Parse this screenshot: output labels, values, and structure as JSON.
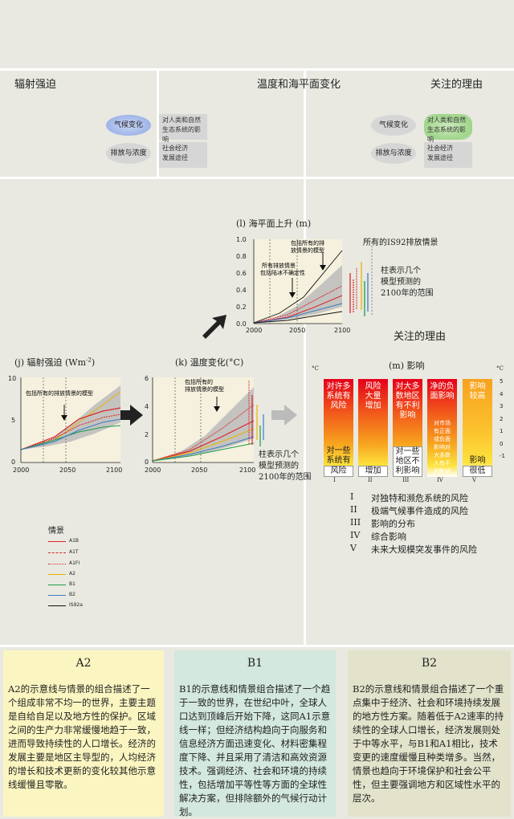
{
  "headers": {
    "left": "辐射强迫",
    "middle": "温度和海平面变化",
    "right": "关注的理由"
  },
  "mini": {
    "climate_change": "气候变化",
    "emissions": "排放与浓度",
    "impacts_line1": "对人类和自然",
    "impacts_line2": "生态系统的影响",
    "socio_line1": "社会经济",
    "socio_line2": "发展途径"
  },
  "sea_level": {
    "title": "(l) 海平面上升 (m)",
    "ann_models_1": "包括所有的排",
    "ann_models_2": "放情景的模型",
    "ann_ice_1": "所有排放情景",
    "ann_ice_2": "包括陆冰不确定性",
    "right_label": "所有的IS92排放情景",
    "bar_label_1": "柱表示几个",
    "bar_label_2": "模型预测的",
    "bar_label_3": "2100年的范围",
    "yticks": [
      "1.0",
      "0.8",
      "0.6",
      "0.4",
      "0.2",
      "0.0"
    ],
    "xticks": [
      "2000",
      "2050",
      "2100"
    ]
  },
  "forcing": {
    "title": "(j)  辐射强迫 (Wm",
    "title_sup": "-2",
    "title_end": ")",
    "ann": "包括所有的排放情景的模型",
    "yticks": [
      "10",
      "5",
      "0"
    ],
    "xticks": [
      "2000",
      "2050",
      "2100"
    ]
  },
  "temperature": {
    "title": "(k) 温度变化(°C)",
    "ann_1": "包括所有的",
    "ann_2": "排放情景的模型",
    "yticks": [
      "6",
      "4",
      "2",
      "0"
    ],
    "xticks": [
      "2000",
      "2050",
      "2100"
    ],
    "bar_label_1": "柱表示几个",
    "bar_label_2": "模型预测的",
    "bar_label_3": "2100年的范围"
  },
  "impacts": {
    "section_title": "关注的理由",
    "title": "(m) 影响",
    "unit": "°C",
    "scale": [
      "5",
      "4",
      "3",
      "2",
      "1",
      "0",
      "-1"
    ],
    "columns": [
      {
        "top": [
          "对许多",
          "系统有",
          "风险"
        ],
        "bottom": [
          "对一些",
          "系统有"
        ],
        "base": "风险",
        "roman": "I"
      },
      {
        "top": [
          "风险",
          "大量",
          "增加"
        ],
        "bottom": [],
        "base": "增加",
        "roman": "II"
      },
      {
        "top": [
          "对大多",
          "数地区",
          "有不利",
          "影响"
        ],
        "bottom": [
          "对一些",
          "地区不",
          "利影响"
        ],
        "base": "",
        "roman": "III"
      },
      {
        "top": [
          "净的负",
          "面影响"
        ],
        "bottom": [
          "对市场",
          "有正面",
          "或负面",
          "影响对",
          "大多数",
          "人有不",
          "利影响"
        ],
        "base": "",
        "roman": "IV"
      },
      {
        "top": [
          "影响",
          "较高"
        ],
        "bottom": [
          "影响"
        ],
        "base": "很低",
        "roman": "V"
      }
    ],
    "reasons": [
      {
        "num": "I",
        "text": "对独特和濒危系统的风险"
      },
      {
        "num": "II",
        "text": "极端气候事件造成的风险"
      },
      {
        "num": "III",
        "text": "影响的分布"
      },
      {
        "num": "IV",
        "text": "综合影响"
      },
      {
        "num": "V",
        "text": "未来大规模突发事件的风险"
      }
    ]
  },
  "legend": {
    "title": "情景",
    "items": [
      {
        "name": "A1B",
        "color": "#d8252a"
      },
      {
        "name": "A1T",
        "color": "#d8252a"
      },
      {
        "name": "A1FI",
        "color": "#d8252a"
      },
      {
        "name": "A2",
        "color": "#e6b400"
      },
      {
        "name": "B1",
        "color": "#1c9a48"
      },
      {
        "name": "B2",
        "color": "#3a7cc2"
      },
      {
        "name": "IS92a",
        "color": "#111111"
      }
    ]
  },
  "panels": [
    {
      "title": "A2",
      "bg": "#fbf6c1",
      "text": "A2的示意线与情景的组合描述了一个组成非常不均一的世界，主要主题是自给自足以及地方性的保护。区域之间的生产力非常缓慢地趋于一致，进而导致持续性的人口增长。经济的发展主要是地区主导型的，人均经济的增长和技术更新的变化较其他示意线缓慢且零散。"
    },
    {
      "title": "B1",
      "bg": "#d3e8df",
      "text": "B1的示意线和情景组合描述了一个趋于一致的世界，在世纪中叶，全球人口达到顶峰后开始下降，这同A1示意线一样；但经济结构趋向于向服务和信息经济方面迅速变化、材料密集程度下降、并且采用了清洁和高效资源技术。强调经济、社会和环境的持续性，包括增加平等性等方面的全球性解决方案，但排除额外的气候行动计划。"
    },
    {
      "title": "B2",
      "bg": "#e3e3cc",
      "text": "B2的示意线和情景组合描述了一个重点集中于经济、社会和环境持续发展的地方性方案。随着低于A2速率的持续性的全球人口增长，经济发展则处于中等水平，与B1和A1相比，技术变更的速度缓慢且种类增多。当然，情景也趋向于环境保护和社会公平性，但主要强调地方和区域性水平的层次。"
    }
  ]
}
